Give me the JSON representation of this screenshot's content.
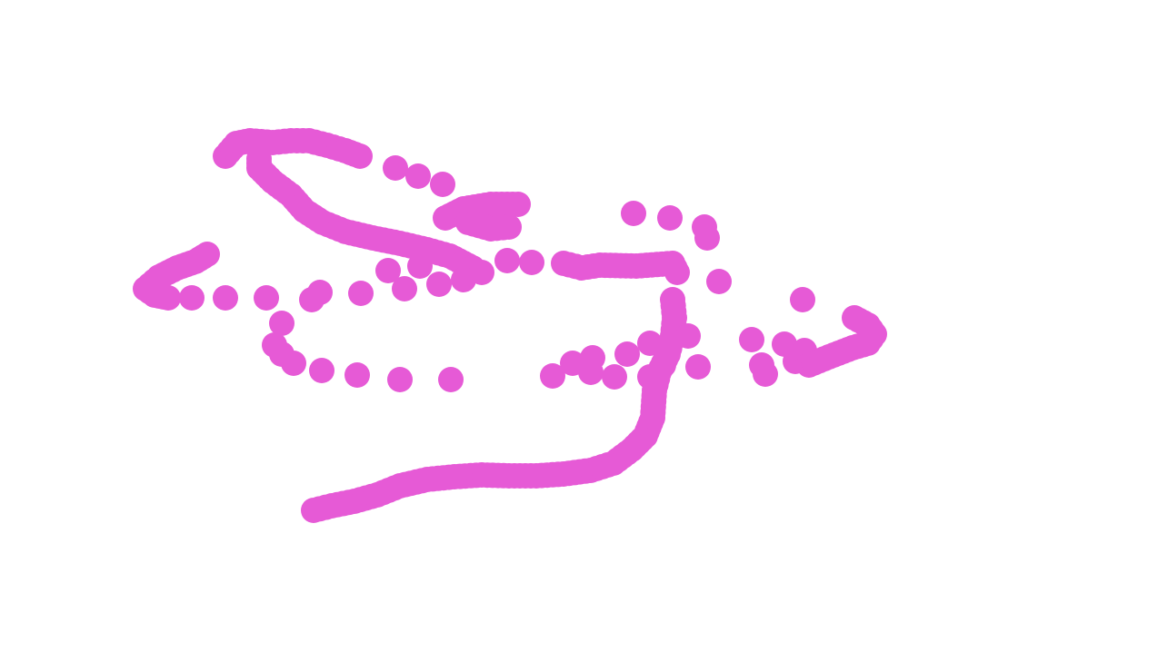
{
  "canvas": {
    "stroke_color": "#e65ad6"
  }
}
